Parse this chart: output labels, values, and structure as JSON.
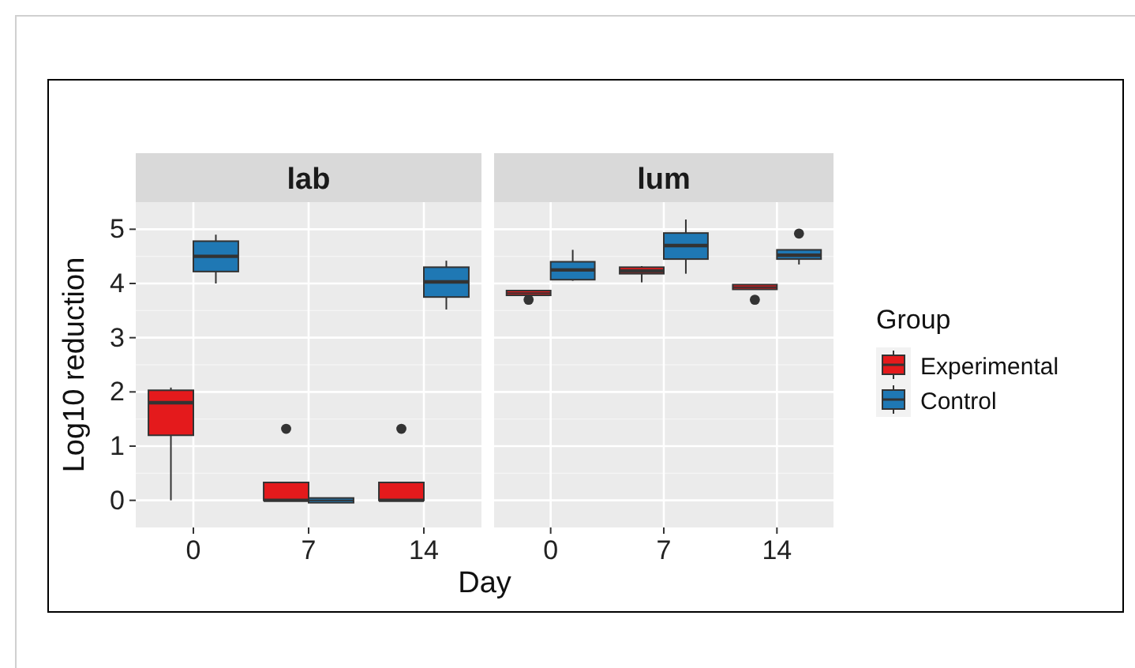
{
  "chart_data": [
    {
      "type": "box",
      "title": "lab",
      "xlabel": "Day",
      "ylabel": "Log10 reduction",
      "categories": [
        "0",
        "7",
        "14"
      ],
      "ylim": [
        -0.5,
        5.5
      ],
      "yticks": [
        0,
        1,
        2,
        3,
        4,
        5
      ],
      "grid": true,
      "series": [
        {
          "color": "#e41a1c",
          "boxes": [
            {
              "low": 0,
              "q1": 1.2,
              "median": 1.8,
              "q3": 2.03,
              "high": 2.08
            },
            {
              "low": 0,
              "q1": 0,
              "median": 0,
              "q3": 0.33,
              "high": 0.33,
              "outliers": [
                1.32
              ]
            },
            {
              "low": 0,
              "q1": 0,
              "median": 0,
              "q3": 0.33,
              "high": 0.33,
              "outliers": [
                1.32
              ]
            }
          ]
        },
        {
          "color": "#1f78b4",
          "boxes": [
            {
              "low": 4.0,
              "q1": 4.22,
              "median": 4.5,
              "q3": 4.78,
              "high": 4.9
            },
            {
              "low": 0,
              "q1": 0,
              "median": 0,
              "q3": 0,
              "high": 0
            },
            {
              "low": 3.52,
              "q1": 3.75,
              "median": 4.03,
              "q3": 4.3,
              "high": 4.42
            }
          ]
        }
      ]
    },
    {
      "type": "box",
      "title": "lum",
      "categories": [
        "0",
        "7",
        "14"
      ],
      "ylim": [
        -0.5,
        5.5
      ],
      "yticks": [
        0,
        1,
        2,
        3,
        4,
        5
      ],
      "grid": true,
      "tick_labels": "x",
      "legend": "right",
      "legend_title": "Group",
      "series": [
        {
          "name": "Experimental",
          "color": "#e41a1c",
          "boxes": [
            {
              "low": 3.8,
              "q1": 3.8,
              "median": 3.82,
              "q3": 3.85,
              "high": 3.85,
              "outliers": [
                3.7
              ]
            },
            {
              "low": 4.02,
              "q1": 4.18,
              "median": 4.23,
              "q3": 4.3,
              "high": 4.32
            },
            {
              "low": 3.9,
              "q1": 3.9,
              "median": 3.93,
              "q3": 3.97,
              "high": 3.97,
              "outliers": [
                3.7
              ]
            }
          ]
        },
        {
          "name": "Control",
          "color": "#1f78b4",
          "boxes": [
            {
              "low": 4.05,
              "q1": 4.07,
              "median": 4.25,
              "q3": 4.4,
              "high": 4.62
            },
            {
              "low": 4.18,
              "q1": 4.45,
              "median": 4.7,
              "q3": 4.93,
              "high": 5.18
            },
            {
              "low": 4.35,
              "q1": 4.45,
              "median": 4.52,
              "q3": 4.62,
              "high": 4.62,
              "outliers": [
                4.92
              ]
            }
          ]
        }
      ]
    }
  ]
}
